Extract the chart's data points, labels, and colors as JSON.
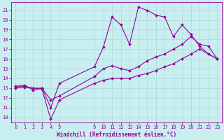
{
  "xlabel": "Windchill (Refroidissement éolien,°C)",
  "background_color": "#c8eef0",
  "grid_color": "#b0dde0",
  "line_color": "#990099",
  "xlim": [
    -0.5,
    23.5
  ],
  "ylim": [
    9.5,
    21.8
  ],
  "xtick_positions": [
    0,
    1,
    2,
    3,
    4,
    5,
    9,
    10,
    11,
    12,
    13,
    14,
    15,
    16,
    17,
    18,
    19,
    20,
    21,
    22,
    23
  ],
  "xtick_labels": [
    "0",
    "1",
    "2",
    "3",
    "4",
    "5",
    "9",
    "10",
    "11",
    "12",
    "13",
    "14",
    "15",
    "16",
    "17",
    "18",
    "19",
    "20",
    "21",
    "22",
    "23"
  ],
  "yticks": [
    10,
    11,
    12,
    13,
    14,
    15,
    16,
    17,
    18,
    19,
    20,
    21
  ],
  "series": [
    {
      "x": [
        0,
        1,
        2,
        3,
        4,
        5,
        9,
        10,
        11,
        12,
        13,
        14,
        15,
        16,
        17,
        18,
        19,
        20,
        21,
        22,
        23
      ],
      "y": [
        13.2,
        13.3,
        12.8,
        13.0,
        11.0,
        13.5,
        15.2,
        17.2,
        20.3,
        19.5,
        17.5,
        21.3,
        21.0,
        20.5,
        20.3,
        18.3,
        19.5,
        18.5,
        17.3,
        16.5,
        16.0
      ]
    },
    {
      "x": [
        0,
        1,
        2,
        3,
        4,
        5,
        9,
        10,
        11,
        12,
        13,
        14,
        15,
        16,
        17,
        18,
        19,
        20,
        21,
        22,
        23
      ],
      "y": [
        13.1,
        13.2,
        13.0,
        13.0,
        11.8,
        12.2,
        14.2,
        15.0,
        15.3,
        15.0,
        14.8,
        15.2,
        15.8,
        16.2,
        16.5,
        17.0,
        17.5,
        18.3,
        17.5,
        17.3,
        16.0
      ]
    },
    {
      "x": [
        0,
        1,
        2,
        3,
        4,
        5,
        9,
        10,
        11,
        12,
        13,
        14,
        15,
        16,
        17,
        18,
        19,
        20,
        21,
        22,
        23
      ],
      "y": [
        13.0,
        13.1,
        13.0,
        12.9,
        9.8,
        11.8,
        13.5,
        13.8,
        14.0,
        14.0,
        14.0,
        14.3,
        14.5,
        14.8,
        15.2,
        15.5,
        16.0,
        16.5,
        17.0,
        16.5,
        16.0
      ]
    }
  ]
}
